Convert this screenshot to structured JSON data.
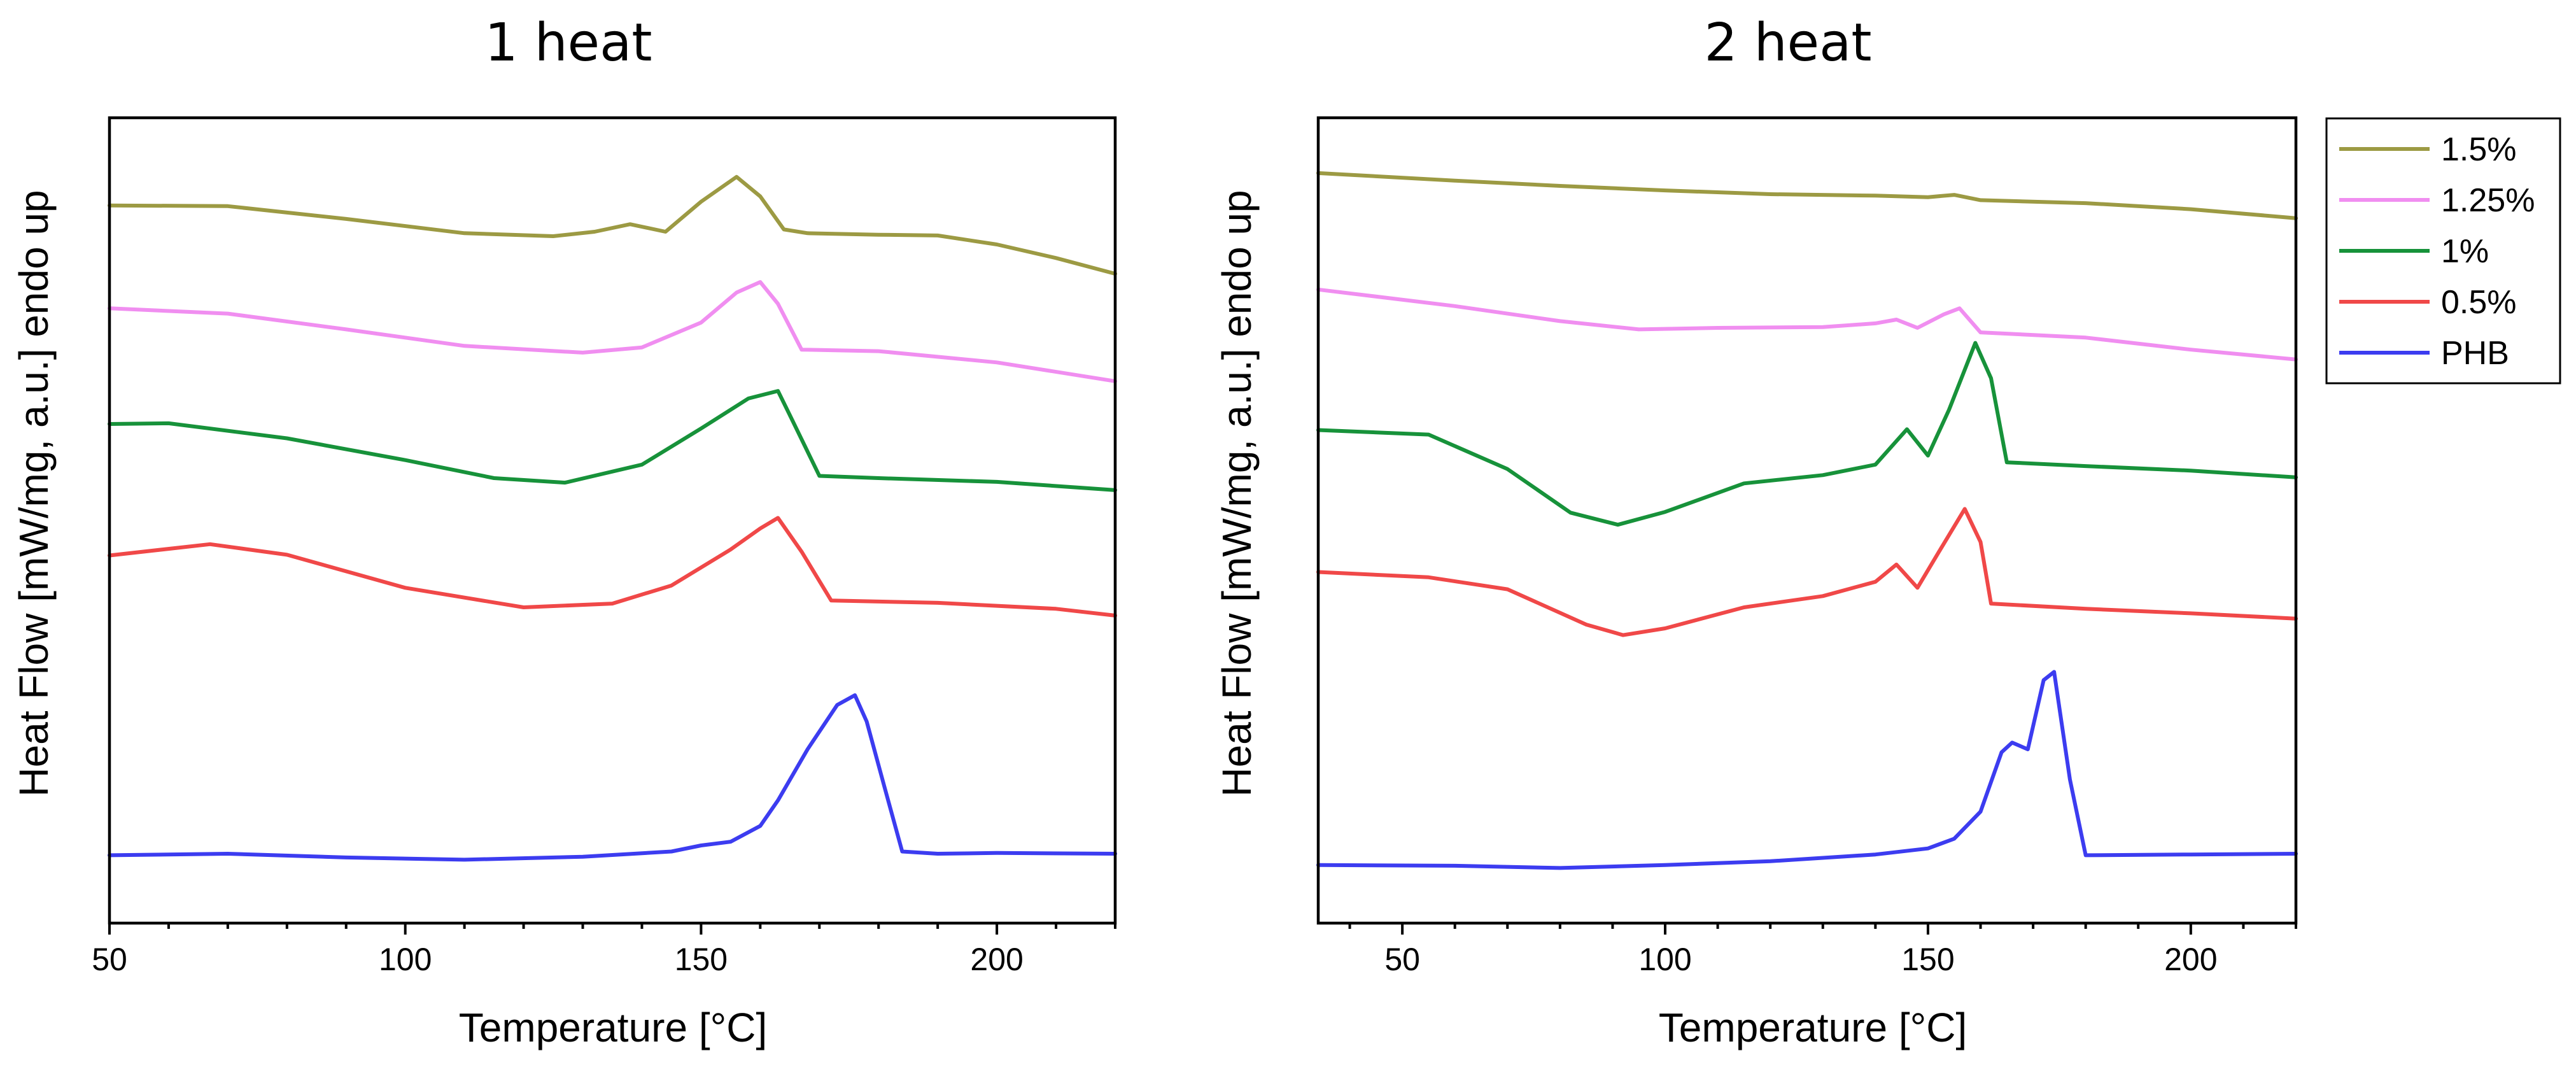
{
  "colors": {
    "1.5%": "#9c9a43",
    "1.25%": "#f08ef0",
    "1%": "#17923a",
    "0.5%": "#f04848",
    "PHB": "#3c3cf0"
  },
  "legend": {
    "entries": [
      "1.5%",
      "1.25%",
      "1%",
      "0.5%",
      "PHB"
    ]
  },
  "chart_data": [
    {
      "type": "line",
      "title": "1 heat",
      "xlabel": "Temperature [°C]",
      "ylabel": "Heat Flow [mW/mg, a.u.] endo up",
      "xlim": [
        50,
        220
      ],
      "ylim": [
        0,
        100
      ],
      "yticks_shown": false,
      "xticks": [
        50,
        100,
        150,
        200
      ],
      "series": [
        {
          "name": "1.5%",
          "x": [
            50,
            70,
            90,
            110,
            125,
            132,
            138,
            144,
            150,
            156,
            160,
            164,
            168,
            180,
            190,
            200,
            210,
            220
          ],
          "y": [
            91.3,
            91.2,
            89.5,
            87.6,
            87.2,
            87.8,
            88.8,
            87.8,
            91.8,
            95.1,
            92.5,
            88.1,
            87.6,
            87.4,
            87.3,
            86.1,
            84.3,
            82.2
          ]
        },
        {
          "name": "1.25%",
          "x": [
            50,
            70,
            90,
            110,
            130,
            140,
            150,
            156,
            160,
            163,
            167,
            180,
            200,
            220
          ],
          "y": [
            77.6,
            76.9,
            74.8,
            72.6,
            71.7,
            72.4,
            75.7,
            79.7,
            81.1,
            78.2,
            72.1,
            71.9,
            70.4,
            67.9
          ]
        },
        {
          "name": "1%",
          "x": [
            50,
            60,
            80,
            100,
            115,
            127,
            140,
            150,
            158,
            163,
            165,
            170,
            180,
            200,
            220
          ],
          "y": [
            62.2,
            62.3,
            60.3,
            57.4,
            55.0,
            54.4,
            56.8,
            61.6,
            65.6,
            66.6,
            63.4,
            55.3,
            55.0,
            54.5,
            53.4
          ]
        },
        {
          "name": "0.5%",
          "x": [
            50,
            67,
            80,
            100,
            120,
            135,
            145,
            155,
            160,
            163,
            167,
            172,
            190,
            210,
            220
          ],
          "y": [
            44.7,
            46.2,
            44.8,
            40.4,
            37.8,
            38.3,
            40.7,
            45.5,
            48.3,
            49.7,
            45.2,
            38.7,
            38.4,
            37.6,
            36.7
          ]
        },
        {
          "name": "PHB",
          "x": [
            50,
            70,
            90,
            110,
            130,
            145,
            150,
            155,
            160,
            163,
            168,
            173,
            176,
            178,
            181,
            184,
            190,
            200,
            220
          ],
          "y": [
            4.8,
            5.0,
            4.5,
            4.2,
            4.6,
            5.3,
            6.1,
            6.6,
            8.7,
            12.1,
            18.9,
            24.8,
            26.1,
            22.6,
            13.9,
            5.3,
            5.0,
            5.1,
            5.0
          ]
        }
      ]
    },
    {
      "type": "line",
      "title": "2 heat",
      "xlabel": "Temperature [°C]",
      "ylabel": "Heat Flow [mW/mg, a.u.] endo up",
      "xlim": [
        34,
        220
      ],
      "ylim": [
        0,
        100
      ],
      "yticks_shown": false,
      "xticks": [
        50,
        100,
        150,
        200
      ],
      "series": [
        {
          "name": "1.5%",
          "x": [
            34,
            60,
            80,
            100,
            120,
            140,
            150,
            155,
            160,
            180,
            200,
            220
          ],
          "y": [
            95.6,
            94.6,
            93.9,
            93.3,
            92.8,
            92.6,
            92.4,
            92.7,
            92.0,
            91.6,
            90.8,
            89.6
          ]
        },
        {
          "name": "1.25%",
          "x": [
            34,
            60,
            80,
            95,
            110,
            130,
            140,
            144,
            148,
            153,
            156,
            160,
            180,
            200,
            220
          ],
          "y": [
            80.1,
            77.9,
            75.9,
            74.8,
            75.0,
            75.1,
            75.6,
            76.1,
            75.0,
            76.8,
            77.6,
            74.4,
            73.7,
            72.1,
            70.8
          ]
        },
        {
          "name": "1%",
          "x": [
            34,
            55,
            70,
            82,
            91,
            100,
            115,
            130,
            140,
            146,
            150,
            154,
            159,
            162,
            165,
            180,
            200,
            220
          ],
          "y": [
            61.4,
            60.8,
            56.2,
            50.4,
            48.8,
            50.5,
            54.3,
            55.4,
            56.8,
            61.5,
            58.0,
            64.1,
            73.0,
            68.3,
            57.1,
            56.6,
            56.0,
            55.1
          ]
        },
        {
          "name": "0.5%",
          "x": [
            34,
            55,
            70,
            85,
            92,
            100,
            115,
            130,
            140,
            144,
            148,
            152,
            157,
            160,
            162,
            180,
            200,
            220
          ],
          "y": [
            42.5,
            41.8,
            40.2,
            35.5,
            34.1,
            35.0,
            37.8,
            39.3,
            41.2,
            43.5,
            40.4,
            45.1,
            50.9,
            46.5,
            38.3,
            37.6,
            37.0,
            36.3
          ]
        },
        {
          "name": "PHB",
          "x": [
            34,
            60,
            80,
            100,
            120,
            140,
            150,
            155,
            160,
            164,
            166,
            169,
            172,
            174,
            177,
            180,
            200,
            220
          ],
          "y": [
            3.5,
            3.4,
            3.1,
            3.5,
            4.0,
            4.9,
            5.7,
            7.0,
            10.6,
            18.5,
            19.8,
            18.9,
            28.1,
            29.2,
            14.9,
            4.8,
            4.9,
            5.0
          ]
        }
      ]
    }
  ]
}
